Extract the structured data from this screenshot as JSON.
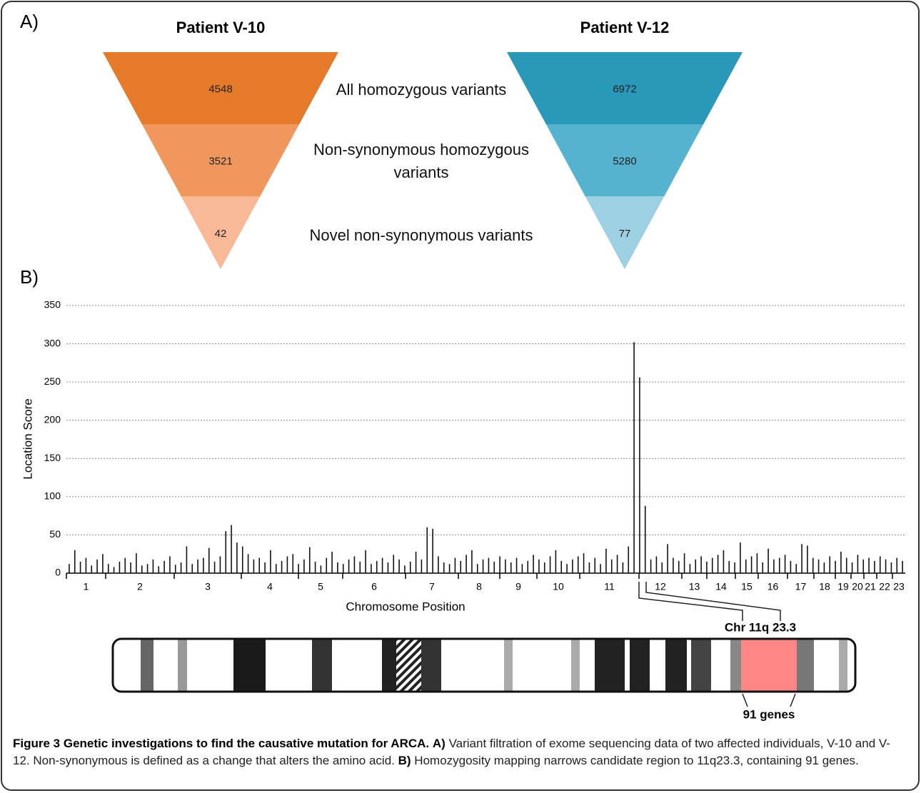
{
  "panel_a": {
    "label": "A)",
    "patients": [
      {
        "name": "Patient V-10",
        "values": [
          4548,
          3521,
          42
        ],
        "colors": [
          "#e57a2a",
          "#f0975e",
          "#f9b896"
        ]
      },
      {
        "name": "Patient V-12",
        "values": [
          6972,
          5280,
          77
        ],
        "colors": [
          "#2a98b8",
          "#55b3cf",
          "#9dd0e2"
        ]
      }
    ],
    "stages": [
      "All homozygous variants",
      "Non-synonymous homozygous variants",
      "Novel non-synonymous variants"
    ]
  },
  "chart_data": {
    "type": "bar",
    "label": "B)",
    "y_label": "Location Score",
    "x_label": "Chromosome Position",
    "chromosomes": [
      "1",
      "2",
      "3",
      "4",
      "5",
      "6",
      "7",
      "8",
      "9",
      "10",
      "11",
      "12",
      "13",
      "14",
      "15",
      "16",
      "17",
      "18",
      "19",
      "20",
      "21",
      "22",
      "23"
    ],
    "values": [
      12,
      30,
      15,
      20,
      10,
      18,
      25,
      12,
      8,
      15,
      20,
      14,
      26,
      10,
      12,
      18,
      9,
      16,
      22,
      11,
      14,
      35,
      12,
      18,
      20,
      33,
      15,
      22,
      55,
      63,
      40,
      35,
      25,
      18,
      20,
      14,
      30,
      12,
      16,
      22,
      25,
      12,
      18,
      34,
      15,
      10,
      20,
      28,
      14,
      12,
      18,
      22,
      15,
      30,
      12,
      16,
      20,
      14,
      24,
      18,
      10,
      15,
      28,
      18,
      60,
      58,
      22,
      14,
      12,
      20,
      16,
      24,
      30,
      12,
      18,
      20,
      15,
      22,
      18,
      14,
      20,
      12,
      16,
      24,
      18,
      14,
      22,
      30,
      16,
      12,
      18,
      22,
      26,
      14,
      20,
      12,
      32,
      18,
      24,
      14,
      35,
      302,
      256,
      88,
      18,
      22,
      14,
      38,
      20,
      16,
      26,
      12,
      18,
      22,
      15,
      20,
      24,
      30,
      16,
      14,
      40,
      18,
      22,
      26,
      14,
      32,
      18,
      20,
      24,
      16,
      12,
      38,
      36,
      20,
      18,
      14,
      22,
      16,
      28,
      20,
      14,
      24,
      18,
      20,
      16,
      22,
      18,
      14,
      20,
      16
    ],
    "color": "#111111",
    "ylim": [
      0,
      350
    ],
    "yticks": [
      0,
      50,
      100,
      150,
      200,
      250,
      300,
      350
    ],
    "grid": true
  },
  "ideogram": {
    "region": "Chr 11q 23.3",
    "genes": "91 genes"
  },
  "caption": {
    "label": "Figure 3",
    "title": "Genetic investigations to find the causative mutation for ARCA.",
    "a_label": "A)",
    "a_text": "Variant filtration of exome sequencing data of two affected individuals, V-10 and V-12. Non-synonymous is defined as a change that alters the amino acid.",
    "b_label": "B)",
    "b_text": "Homozygosity mapping narrows candidate region to 11q23.3, containing 91 genes."
  }
}
